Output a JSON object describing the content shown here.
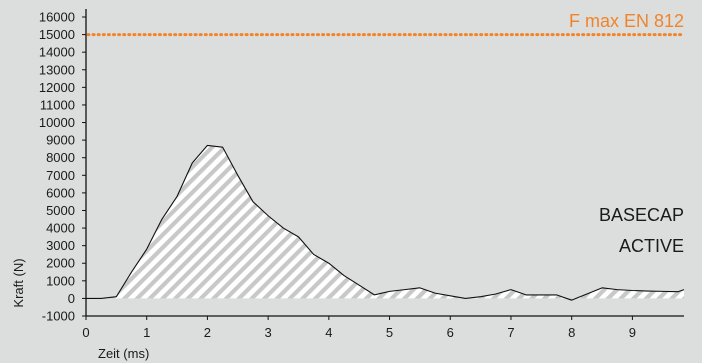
{
  "chart_data": {
    "type": "area",
    "xlabel": "Zeit (ms)",
    "ylabel": "Kraft (N)",
    "xlim": [
      0,
      9.85
    ],
    "ylim": [
      -1000,
      16000
    ],
    "x_ticks": [
      0,
      1,
      2,
      3,
      4,
      5,
      6,
      7,
      8,
      9
    ],
    "y_ticks": [
      -1000,
      0,
      1000,
      2000,
      3000,
      4000,
      5000,
      6000,
      7000,
      8000,
      9000,
      10000,
      11000,
      12000,
      13000,
      14000,
      15000,
      16000
    ],
    "grid": false,
    "fill_pattern": "diagonal-hatch",
    "series": [
      {
        "x": [
          0,
          0.25,
          0.5,
          0.75,
          1.0,
          1.25,
          1.5,
          1.75,
          2.0,
          2.25,
          2.5,
          2.75,
          3.0,
          3.25,
          3.5,
          3.75,
          4.0,
          4.25,
          4.5,
          4.75,
          5.0,
          5.25,
          5.5,
          5.75,
          6.0,
          6.25,
          6.5,
          6.75,
          7.0,
          7.25,
          7.5,
          7.75,
          8.0,
          8.25,
          8.5,
          8.75,
          9.0,
          9.25,
          9.5,
          9.75,
          9.85
        ],
        "y": [
          0,
          0,
          100,
          1500,
          2800,
          4500,
          5800,
          7700,
          8700,
          8600,
          7000,
          5500,
          4700,
          4000,
          3500,
          2500,
          2000,
          1300,
          750,
          200,
          400,
          500,
          600,
          300,
          150,
          0,
          100,
          250,
          500,
          200,
          200,
          200,
          -100,
          250,
          600,
          500,
          450,
          420,
          400,
          380,
          500
        ],
        "color": "#111111"
      }
    ],
    "reference_line": {
      "label": "F max EN 812",
      "value": 15000,
      "color": "#f0842b"
    },
    "annotations": [
      "BASECAP",
      "ACTIVE"
    ]
  }
}
